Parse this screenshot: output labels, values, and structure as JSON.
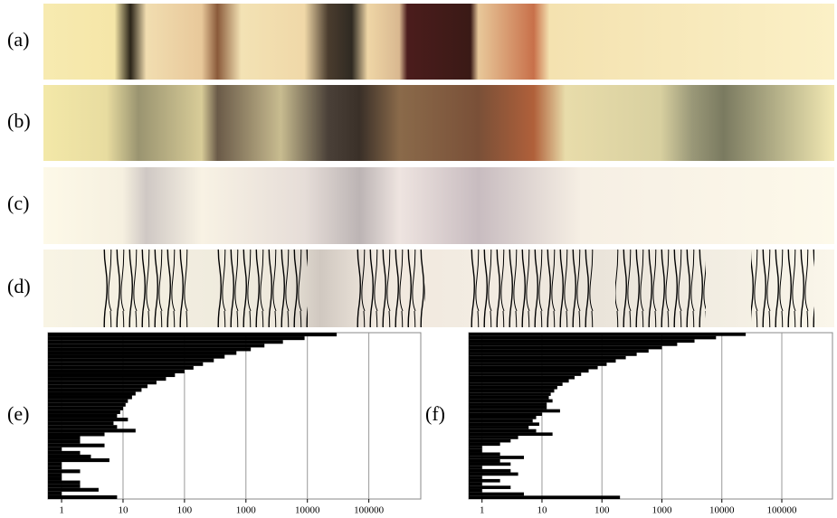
{
  "panels": [
    "(a)",
    "(b)",
    "(c)",
    "(d)"
  ],
  "chart_data": [
    {
      "type": "bar",
      "label": "(e)",
      "orientation": "horizontal",
      "xscale": "log",
      "grid": true,
      "color": "#000000",
      "xlim": [
        0.6,
        700000
      ],
      "xticks": [
        1,
        10,
        100,
        1000,
        10000,
        100000
      ],
      "values": [
        30000,
        9000,
        4000,
        2000,
        1200,
        700,
        450,
        300,
        200,
        140,
        100,
        70,
        50,
        35,
        25,
        20,
        16,
        14,
        12,
        11,
        10,
        9,
        8,
        12,
        7,
        8,
        16,
        5,
        2,
        2,
        5,
        1,
        2,
        3,
        6,
        1,
        1,
        2,
        1,
        1,
        2,
        2,
        4,
        1,
        8
      ]
    },
    {
      "type": "bar",
      "label": "(f)",
      "orientation": "horizontal",
      "xscale": "log",
      "grid": true,
      "color": "#000000",
      "xlim": [
        0.6,
        700000
      ],
      "xticks": [
        1,
        10,
        100,
        1000,
        10000,
        100000
      ],
      "values": [
        25000,
        8000,
        3500,
        1800,
        1000,
        600,
        380,
        250,
        170,
        120,
        85,
        60,
        45,
        35,
        28,
        22,
        18,
        16,
        14,
        13,
        15,
        12,
        12,
        20,
        10,
        8,
        7,
        9,
        6,
        8,
        15,
        4,
        3,
        2,
        1,
        1,
        2,
        5,
        2,
        3,
        1,
        3,
        4,
        1,
        2,
        1,
        3,
        1,
        5,
        200
      ]
    }
  ]
}
